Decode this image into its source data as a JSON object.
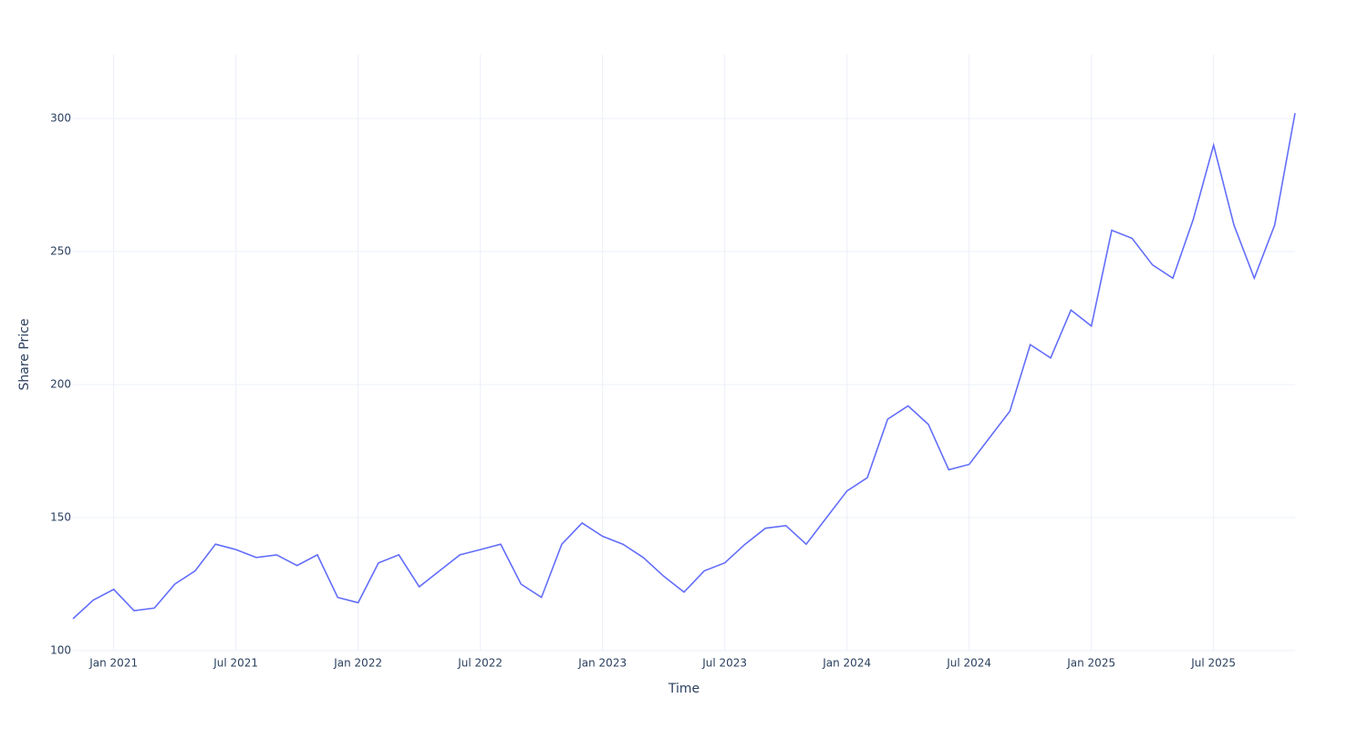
{
  "chart_data": {
    "type": "line",
    "x_label": "Time",
    "y_label": "Share Price",
    "x": [
      "2020-11",
      "2020-12",
      "2021-01",
      "2021-02",
      "2021-03",
      "2021-04",
      "2021-05",
      "2021-06",
      "2021-07",
      "2021-08",
      "2021-09",
      "2021-10",
      "2021-11",
      "2021-12",
      "2022-01",
      "2022-02",
      "2022-03",
      "2022-04",
      "2022-05",
      "2022-06",
      "2022-07",
      "2022-08",
      "2022-09",
      "2022-10",
      "2022-11",
      "2022-12",
      "2023-01",
      "2023-02",
      "2023-03",
      "2023-04",
      "2023-05",
      "2023-06",
      "2023-07",
      "2023-08",
      "2023-09",
      "2023-10",
      "2023-11",
      "2023-12",
      "2024-01",
      "2024-02",
      "2024-03",
      "2024-04",
      "2024-05",
      "2024-06",
      "2024-07",
      "2024-08",
      "2024-09",
      "2024-10",
      "2024-11",
      "2024-12",
      "2025-01",
      "2025-02",
      "2025-03",
      "2025-04",
      "2025-05",
      "2025-06",
      "2025-07",
      "2025-08",
      "2025-09",
      "2025-10",
      "2025-11"
    ],
    "values": [
      112,
      119,
      123,
      115,
      116,
      125,
      130,
      140,
      138,
      135,
      136,
      132,
      136,
      120,
      118,
      133,
      136,
      124,
      130,
      136,
      138,
      140,
      125,
      120,
      140,
      148,
      143,
      140,
      135,
      128,
      122,
      130,
      133,
      140,
      146,
      147,
      140,
      150,
      160,
      165,
      187,
      192,
      185,
      168,
      170,
      180,
      190,
      215,
      210,
      228,
      222,
      258,
      255,
      245,
      240,
      262,
      290,
      260,
      240,
      260,
      302
    ],
    "color": "#636efa",
    "xlim": [
      "2020-11",
      "2025-11"
    ],
    "xticks": [
      {
        "value": "2021-01",
        "label": "Jan 2021"
      },
      {
        "value": "2021-07",
        "label": "Jul 2021"
      },
      {
        "value": "2022-01",
        "label": "Jan 2022"
      },
      {
        "value": "2022-07",
        "label": "Jul 2022"
      },
      {
        "value": "2023-01",
        "label": "Jan 2023"
      },
      {
        "value": "2023-07",
        "label": "Jul 2023"
      },
      {
        "value": "2024-01",
        "label": "Jan 2024"
      },
      {
        "value": "2024-07",
        "label": "Jul 2024"
      },
      {
        "value": "2025-01",
        "label": "Jan 2025"
      },
      {
        "value": "2025-07",
        "label": "Jul 2025"
      }
    ],
    "ylim": [
      100,
      324
    ],
    "yticks": [
      100,
      150,
      200,
      250,
      300
    ],
    "grid": true
  }
}
